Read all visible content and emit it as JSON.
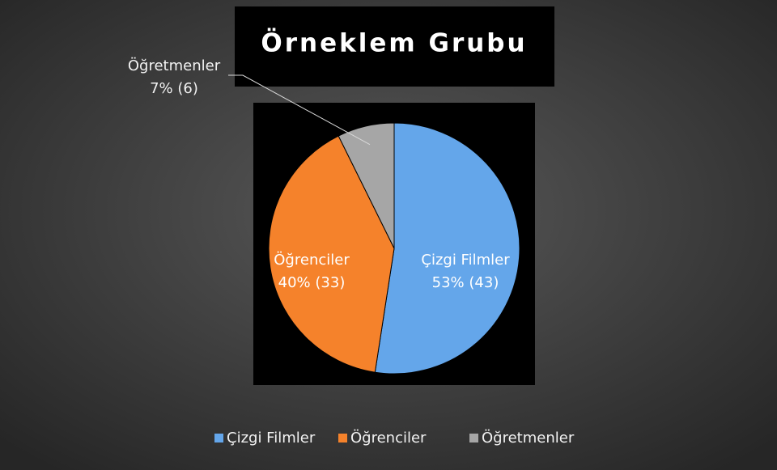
{
  "chart_data": {
    "type": "pie",
    "title": "Örneklem Grubu",
    "categories": [
      "Çizgi Filmler",
      "Öğrenciler",
      "Öğretmenler"
    ],
    "values": [
      43,
      33,
      6
    ],
    "value_labels": [
      "53% (43)",
      "40% (33)",
      "7% (6)"
    ],
    "colors": [
      "#64a6ea",
      "#f5822b",
      "#a6a6a6"
    ],
    "legend": "bottom"
  }
}
